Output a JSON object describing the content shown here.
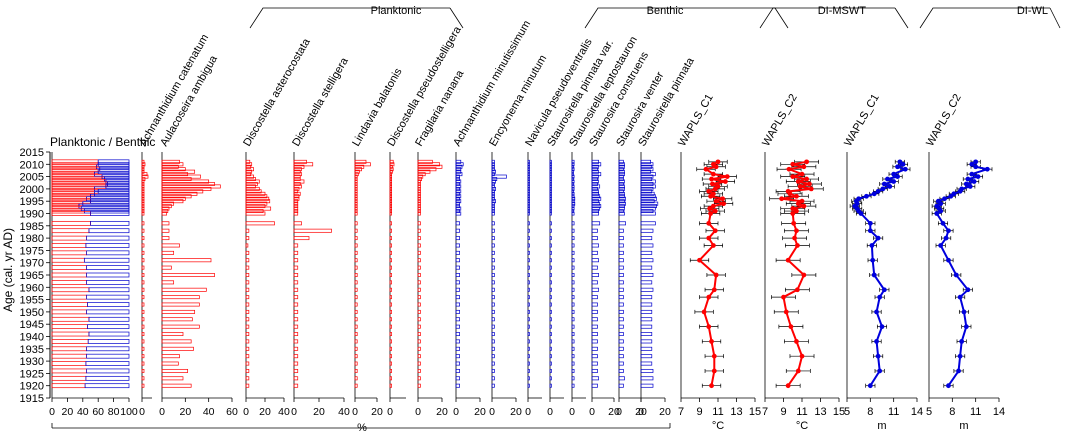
{
  "chart_data": {
    "type": "stratigraphic-diagram",
    "ylabel": "Age (cal. yr AD)",
    "ylim": [
      1915,
      2015
    ],
    "yticks": [
      1915,
      1920,
      1925,
      1930,
      1935,
      1940,
      1945,
      1950,
      1955,
      1960,
      1965,
      1970,
      1975,
      1980,
      1985,
      1990,
      1995,
      2000,
      2005,
      2010,
      2015
    ],
    "ages": [
      2011,
      2010,
      2009,
      2008,
      2007,
      2006,
      2005,
      2004,
      2003,
      2002,
      2001,
      2000,
      1999,
      1998,
      1997,
      1996,
      1995,
      1994,
      1993,
      1992,
      1991,
      1990,
      1986,
      1983,
      1980,
      1977,
      1974,
      1971,
      1968,
      1965,
      1962,
      1959,
      1956,
      1953,
      1950,
      1947,
      1944,
      1941,
      1938,
      1935,
      1932,
      1929,
      1926,
      1923,
      1920
    ],
    "pct_label": "%",
    "group_labels": {
      "planktonic": "Planktonic",
      "benthic": "Benthic",
      "mswt": "DI-MSWT",
      "wl": "DI-WL"
    },
    "panels": [
      {
        "name": "Planktonic / Benthic",
        "type": "ratio",
        "xmax": 100,
        "ticks": [
          0,
          20,
          40,
          60,
          80,
          100
        ],
        "values": [
          60,
          60,
          58,
          62,
          60,
          55,
          65,
          68,
          70,
          72,
          70,
          55,
          60,
          55,
          50,
          45,
          50,
          40,
          35,
          38,
          42,
          50,
          50,
          48,
          45,
          44,
          45,
          42,
          45,
          45,
          45,
          48,
          45,
          46,
          45,
          48,
          46,
          48,
          47,
          45,
          45,
          44,
          45,
          44,
          43
        ]
      },
      {
        "name": "Achnanthidium catenatum",
        "type": "planktonic",
        "xmax": 10,
        "ticks": [
          0
        ],
        "values": [
          2,
          3,
          2,
          2,
          2,
          5,
          6,
          3,
          2,
          2,
          2,
          2,
          2,
          2,
          2,
          2,
          2,
          2,
          2,
          2,
          2,
          2,
          2,
          2,
          2,
          2,
          2,
          2,
          2,
          2,
          2,
          2,
          2,
          2,
          2,
          2,
          2,
          2,
          2,
          2,
          2,
          2,
          2,
          2,
          2
        ]
      },
      {
        "name": "Aulacoseira ambigua",
        "type": "planktonic",
        "xmax": 60,
        "ticks": [
          0,
          20,
          40,
          60
        ],
        "values": [
          15,
          18,
          14,
          20,
          28,
          22,
          33,
          25,
          40,
          45,
          50,
          42,
          35,
          30,
          25,
          20,
          18,
          10,
          8,
          6,
          5,
          4,
          6,
          6,
          6,
          15,
          10,
          42,
          8,
          45,
          10,
          38,
          32,
          32,
          28,
          26,
          32,
          18,
          25,
          27,
          15,
          14,
          22,
          18,
          25
        ]
      },
      {
        "name": "Discostella asterocostata",
        "type": "planktonic",
        "xmax": 40,
        "ticks": [
          0,
          20,
          40
        ],
        "values": [
          4,
          6,
          5,
          8,
          6,
          5,
          8,
          10,
          14,
          12,
          10,
          14,
          16,
          20,
          22,
          24,
          25,
          22,
          20,
          26,
          18,
          20,
          30,
          3,
          3,
          2,
          3,
          3,
          3,
          3,
          3,
          3,
          3,
          3,
          3,
          3,
          3,
          3,
          3,
          3,
          3,
          3,
          3,
          3,
          3
        ]
      },
      {
        "name": "Discostella stelligera",
        "type": "planktonic",
        "xmax": 40,
        "ticks": [
          0,
          20,
          40
        ],
        "values": [
          10,
          15,
          8,
          6,
          5,
          6,
          5,
          5,
          8,
          5,
          6,
          4,
          3,
          5,
          4,
          4,
          3,
          3,
          3,
          3,
          3,
          3,
          6,
          30,
          12,
          3,
          3,
          3,
          3,
          3,
          3,
          3,
          3,
          3,
          3,
          3,
          3,
          3,
          3,
          3,
          3,
          3,
          3,
          3,
          3
        ]
      },
      {
        "name": "Lindavia balatonis",
        "type": "planktonic",
        "xmax": 20,
        "ticks": [
          0,
          20
        ],
        "values": [
          10,
          14,
          8,
          6,
          4,
          3,
          2,
          2,
          2,
          2,
          2,
          2,
          2,
          2,
          2,
          2,
          2,
          2,
          2,
          2,
          2,
          2,
          2,
          2,
          2,
          2,
          2,
          2,
          2,
          2,
          2,
          2,
          2,
          2,
          2,
          2,
          2,
          2,
          2,
          2,
          2,
          2,
          2,
          2,
          2
        ]
      },
      {
        "name": "Discostella pseudostelligera",
        "type": "planktonic",
        "xmax": 20,
        "ticks": [
          0
        ],
        "values": [
          4,
          5,
          3,
          4,
          3,
          2,
          2,
          2,
          2,
          2,
          2,
          2,
          2,
          2,
          2,
          2,
          2,
          2,
          2,
          2,
          2,
          2,
          2,
          2,
          2,
          2,
          2,
          2,
          2,
          2,
          2,
          2,
          2,
          2,
          2,
          2,
          2,
          2,
          2,
          2,
          2,
          2,
          2,
          2,
          2
        ]
      },
      {
        "name": "Fragilaria nanana",
        "type": "planktonic",
        "xmax": 20,
        "ticks": [
          0,
          20
        ],
        "values": [
          12,
          18,
          20,
          15,
          10,
          6,
          4,
          3,
          2,
          2,
          2,
          2,
          2,
          2,
          2,
          2,
          2,
          2,
          2,
          2,
          2,
          2,
          2,
          2,
          2,
          2,
          2,
          2,
          2,
          2,
          2,
          2,
          2,
          2,
          2,
          2,
          2,
          2,
          2,
          2,
          2,
          2,
          2,
          2,
          2
        ]
      },
      {
        "name": "Achnanthidium minutissimum",
        "type": "benthic",
        "xmax": 20,
        "ticks": [
          0,
          20
        ],
        "values": [
          4,
          6,
          5,
          4,
          4,
          5,
          3,
          3,
          4,
          3,
          4,
          3,
          4,
          3,
          4,
          3,
          4,
          3,
          3,
          4,
          3,
          4,
          3,
          3,
          3,
          3,
          3,
          3,
          3,
          3,
          3,
          3,
          3,
          3,
          3,
          3,
          3,
          3,
          3,
          3,
          3,
          3,
          3,
          3,
          3
        ]
      },
      {
        "name": "Encyonema minutum",
        "type": "benthic",
        "xmax": 20,
        "ticks": [
          0,
          20
        ],
        "values": [
          2,
          2,
          2,
          2,
          3,
          2,
          12,
          4,
          3,
          2,
          2,
          3,
          2,
          2,
          2,
          2,
          3,
          2,
          2,
          2,
          2,
          2,
          2,
          2,
          2,
          2,
          2,
          2,
          2,
          2,
          2,
          2,
          2,
          2,
          2,
          2,
          2,
          2,
          2,
          2,
          2,
          2,
          2,
          2,
          2
        ]
      },
      {
        "name": "Navicula pseudoventralis",
        "type": "benthic",
        "xmax": 20,
        "ticks": [
          0
        ],
        "values": [
          2,
          2,
          2,
          2,
          2,
          2,
          2,
          2,
          2,
          2,
          2,
          2,
          2,
          2,
          2,
          2,
          2,
          2,
          2,
          2,
          2,
          2,
          2,
          2,
          2,
          2,
          2,
          2,
          2,
          2,
          2,
          2,
          2,
          2,
          2,
          2,
          2,
          2,
          2,
          2,
          2,
          2,
          2,
          2,
          2
        ]
      },
      {
        "name": "Staurosirella pinnata var.",
        "type": "benthic",
        "xmax": 20,
        "ticks": [
          0
        ],
        "values": [
          2,
          2,
          2,
          2,
          2,
          2,
          2,
          2,
          2,
          2,
          2,
          2,
          2,
          2,
          2,
          2,
          2,
          2,
          2,
          2,
          2,
          2,
          2,
          2,
          2,
          2,
          2,
          2,
          2,
          2,
          2,
          2,
          2,
          2,
          2,
          2,
          2,
          2,
          2,
          2,
          2,
          2,
          2,
          2,
          2
        ]
      },
      {
        "name": "Staurosirella leptostauron",
        "type": "benthic",
        "xmax": 20,
        "ticks": [
          0
        ],
        "values": [
          3,
          3,
          2,
          3,
          2,
          2,
          3,
          2,
          3,
          2,
          3,
          3,
          2,
          3,
          3,
          4,
          3,
          4,
          3,
          3,
          2,
          3,
          3,
          3,
          3,
          3,
          3,
          3,
          3,
          3,
          3,
          3,
          3,
          3,
          3,
          3,
          3,
          3,
          3,
          3,
          3,
          3,
          3,
          3,
          3
        ]
      },
      {
        "name": "Staurosira construens",
        "type": "benthic",
        "xmax": 20,
        "ticks": [
          0,
          20
        ],
        "values": [
          6,
          8,
          6,
          5,
          6,
          8,
          6,
          5,
          6,
          5,
          7,
          5,
          6,
          6,
          7,
          8,
          6,
          7,
          8,
          7,
          6,
          6,
          7,
          5,
          5,
          6,
          5,
          6,
          5,
          6,
          5,
          6,
          5,
          5,
          5,
          5,
          5,
          5,
          5,
          5,
          5,
          5,
          5,
          6,
          5
        ]
      },
      {
        "name": "Staurosira venter",
        "type": "benthic",
        "xmax": 20,
        "ticks": [
          0,
          20
        ],
        "values": [
          4,
          5,
          5,
          4,
          5,
          5,
          4,
          4,
          5,
          4,
          5,
          5,
          4,
          5,
          5,
          6,
          5,
          6,
          5,
          5,
          4,
          5,
          6,
          4,
          4,
          4,
          4,
          4,
          4,
          4,
          4,
          4,
          4,
          4,
          4,
          4,
          4,
          4,
          4,
          4,
          4,
          4,
          4,
          5,
          4
        ]
      },
      {
        "name": "Staurosirella pinnata",
        "type": "benthic",
        "xmax": 20,
        "ticks": [
          0,
          20
        ],
        "values": [
          8,
          10,
          9,
          10,
          8,
          12,
          10,
          9,
          12,
          10,
          12,
          10,
          9,
          11,
          12,
          13,
          11,
          14,
          13,
          12,
          10,
          12,
          12,
          10,
          9,
          10,
          9,
          10,
          9,
          10,
          9,
          10,
          9,
          9,
          9,
          9,
          9,
          9,
          9,
          9,
          9,
          9,
          10,
          10,
          10
        ]
      },
      {
        "name": "WAPLS_C1",
        "type": "line",
        "color": "#ff0000",
        "xlim": [
          7,
          15
        ],
        "ticks": [
          7,
          9,
          11,
          13,
          15
        ],
        "ticklabels": [
          "7",
          "9",
          "11",
          "13",
          "15"
        ],
        "unit": "°C",
        "ages": [
          2011,
          2010,
          2009,
          2008,
          2006,
          2005,
          2004,
          2003,
          2002,
          2001,
          2000,
          1999,
          1998,
          1997,
          1996,
          1995,
          1994,
          1993,
          1992,
          1991,
          1990,
          1986,
          1983,
          1980,
          1977,
          1971,
          1965,
          1959,
          1956,
          1950,
          1944,
          1938,
          1932,
          1926,
          1920
        ],
        "values": [
          11.0,
          10.5,
          10.8,
          9.7,
          10.5,
          12.0,
          10.3,
          11.8,
          10.4,
          11.0,
          10.7,
          10.0,
          10.5,
          10.2,
          11.5,
          10.8,
          11.6,
          10.5,
          10.1,
          10.7,
          10.2,
          10.0,
          10.7,
          10.0,
          10.5,
          9.0,
          10.8,
          10.6,
          10.0,
          9.5,
          10.0,
          10.3,
          10.6,
          10.6,
          10.3
        ],
        "err": 1.0
      },
      {
        "name": "WAPLS_C2",
        "type": "line",
        "color": "#ff0000",
        "xlim": [
          7,
          15
        ],
        "ticks": [
          7,
          9,
          11,
          13,
          15
        ],
        "ticklabels": [
          "7",
          "9",
          "11",
          "13",
          "15"
        ],
        "unit": "°C",
        "ages": [
          2011,
          2010,
          2009,
          2008,
          2006,
          2005,
          2004,
          2003,
          2002,
          2001,
          2000,
          1999,
          1998,
          1997,
          1996,
          1995,
          1994,
          1993,
          1992,
          1991,
          1990,
          1986,
          1983,
          1980,
          1977,
          1971,
          1965,
          1959,
          1956,
          1950,
          1944,
          1938,
          1932,
          1926,
          1920
        ],
        "values": [
          11.5,
          10.0,
          11.2,
          9.6,
          11.0,
          10.0,
          11.5,
          10.6,
          11.8,
          10.8,
          12.0,
          9.5,
          9.7,
          10.4,
          8.8,
          11.0,
          10.6,
          11.2,
          10.0,
          10.4,
          10.0,
          10.1,
          10.4,
          10.2,
          10.5,
          9.5,
          11.2,
          10.5,
          9.0,
          9.3,
          9.8,
          10.4,
          11.0,
          10.6,
          9.5
        ],
        "err": 1.3
      },
      {
        "name": "WAPLS_C1",
        "type": "line",
        "color": "#0000dd",
        "xlim": [
          5,
          14
        ],
        "ticks": [
          5,
          8,
          11,
          14
        ],
        "ticklabels": [
          "5",
          "8",
          "11",
          "14"
        ],
        "unit": "m",
        "ages": [
          2011,
          2010,
          2009,
          2008,
          2006,
          2005,
          2004,
          2003,
          2002,
          2001,
          2000,
          1999,
          1998,
          1997,
          1996,
          1995,
          1994,
          1993,
          1992,
          1991,
          1990,
          1986,
          1983,
          1980,
          1977,
          1971,
          1965,
          1959,
          1956,
          1950,
          1944,
          1938,
          1932,
          1926,
          1920
        ],
        "values": [
          11.8,
          12.2,
          11.5,
          12.5,
          11.0,
          11.5,
          10.2,
          11.0,
          9.8,
          10.5,
          9.6,
          9.0,
          8.5,
          7.5,
          6.5,
          6.2,
          6.3,
          6.0,
          6.3,
          6.5,
          6.8,
          8.0,
          8.0,
          9.0,
          8.2,
          8.3,
          8.5,
          9.8,
          9.2,
          8.8,
          9.5,
          8.8,
          9.0,
          9.2,
          8.0
        ],
        "err": 0.6
      },
      {
        "name": "WAPLS_C2",
        "type": "line",
        "color": "#0000dd",
        "xlim": [
          5,
          14
        ],
        "ticks": [
          5,
          8,
          11,
          14
        ],
        "ticklabels": [
          "5",
          "8",
          "11",
          "14"
        ],
        "unit": "m",
        "ages": [
          2011,
          2010,
          2009,
          2008,
          2006,
          2005,
          2004,
          2003,
          2002,
          2001,
          2000,
          1999,
          1998,
          1997,
          1996,
          1995,
          1994,
          1993,
          1992,
          1991,
          1990,
          1986,
          1983,
          1980,
          1977,
          1971,
          1965,
          1959,
          1956,
          1950,
          1944,
          1938,
          1932,
          1926,
          1920
        ],
        "values": [
          11.0,
          10.5,
          11.0,
          12.5,
          10.5,
          11.3,
          10.0,
          10.8,
          9.8,
          10.3,
          9.2,
          9.0,
          8.2,
          7.8,
          7.0,
          6.2,
          6.5,
          6.0,
          6.3,
          6.5,
          6.0,
          6.8,
          7.5,
          7.2,
          6.5,
          7.5,
          8.5,
          10.0,
          9.0,
          9.5,
          9.8,
          9.2,
          9.0,
          8.8,
          7.5
        ],
        "err": 0.6
      }
    ]
  }
}
